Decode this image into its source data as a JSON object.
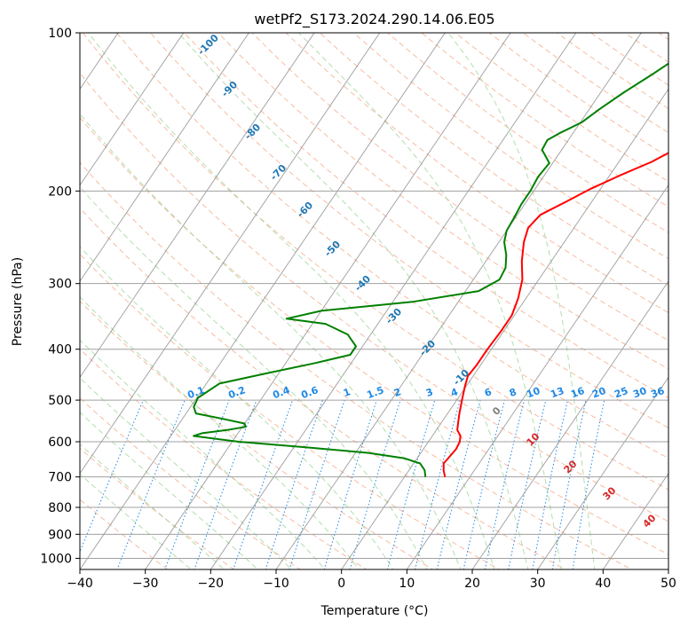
{
  "chart_data": {
    "type": "line",
    "title": "wetPf2_S173.2024.290.14.06.E05",
    "xlabel": "Temperature (°C)",
    "ylabel": "Pressure (hPa)",
    "xlim": [
      -40,
      50
    ],
    "ylim": [
      1050,
      100
    ],
    "y_scale": "log",
    "x_ticks": [
      -40,
      -30,
      -20,
      -10,
      0,
      10,
      20,
      30,
      40,
      50
    ],
    "x_tick_labels": [
      "−40",
      "−30",
      "−20",
      "−10",
      "0",
      "10",
      "20",
      "30",
      "40",
      "50"
    ],
    "y_ticks": [
      1000,
      900,
      800,
      700,
      600,
      500,
      400,
      300,
      200,
      100
    ],
    "y_tick_labels": [
      "1000",
      "900",
      "800",
      "700",
      "600",
      "500",
      "400",
      "300",
      "200",
      "100"
    ],
    "grid": true,
    "series": [
      {
        "color": "#ff0000",
        "points": [
          [
            6.2,
            700
          ],
          [
            5.3,
            680
          ],
          [
            4.6,
            660
          ],
          [
            4.8,
            640
          ],
          [
            5.0,
            620
          ],
          [
            4.8,
            600
          ],
          [
            4.3,
            585
          ],
          [
            3.2,
            570
          ],
          [
            2.5,
            550
          ],
          [
            1.8,
            530
          ],
          [
            0.8,
            500
          ],
          [
            -0.2,
            470
          ],
          [
            -0.8,
            450
          ],
          [
            -0.6,
            430
          ],
          [
            -0.6,
            400
          ],
          [
            -0.4,
            370
          ],
          [
            -0.4,
            345
          ],
          [
            -1.2,
            320
          ],
          [
            -2.5,
            295
          ],
          [
            -4.5,
            272
          ],
          [
            -6.2,
            250
          ],
          [
            -7.0,
            235
          ],
          [
            -6.5,
            222
          ],
          [
            -4.0,
            210
          ],
          [
            -1.5,
            198
          ],
          [
            1.5,
            187
          ],
          [
            5.0,
            176
          ],
          [
            8.2,
            163
          ],
          [
            10.8,
            148
          ],
          [
            12.8,
            132
          ],
          [
            15.5,
            120
          ],
          [
            19.0,
            112
          ],
          [
            21.0,
            106
          ],
          [
            22.5,
            100
          ]
        ]
      },
      {
        "color": "#008000",
        "points": [
          [
            3.2,
            700
          ],
          [
            2.4,
            680
          ],
          [
            1.0,
            660
          ],
          [
            -2.0,
            645
          ],
          [
            -8.0,
            630
          ],
          [
            -18.0,
            615
          ],
          [
            -29.0,
            600
          ],
          [
            -36.5,
            585
          ],
          [
            -35.5,
            578
          ],
          [
            -32.0,
            570
          ],
          [
            -29.5,
            562
          ],
          [
            -30.0,
            554
          ],
          [
            -33.0,
            545
          ],
          [
            -38.5,
            530
          ],
          [
            -39.5,
            515
          ],
          [
            -39.8,
            495
          ],
          [
            -38.0,
            465
          ],
          [
            -32.0,
            445
          ],
          [
            -25.5,
            425
          ],
          [
            -21.0,
            410
          ],
          [
            -21.0,
            395
          ],
          [
            -23.5,
            375
          ],
          [
            -28.0,
            358
          ],
          [
            -34.5,
            350
          ],
          [
            -30.0,
            338
          ],
          [
            -17.0,
            325
          ],
          [
            -8.0,
            310
          ],
          [
            -6.0,
            295
          ],
          [
            -6.3,
            280
          ],
          [
            -7.5,
            265
          ],
          [
            -9.2,
            250
          ],
          [
            -10.0,
            238
          ],
          [
            -10.2,
            225
          ],
          [
            -10.5,
            212
          ],
          [
            -10.5,
            200
          ],
          [
            -10.8,
            188
          ],
          [
            -10.5,
            177
          ],
          [
            -13.0,
            167
          ],
          [
            -13.2,
            160
          ],
          [
            -12.0,
            155
          ],
          [
            -9.8,
            148
          ],
          [
            -8.5,
            140
          ],
          [
            -6.5,
            130
          ],
          [
            -4.0,
            120
          ],
          [
            -1.5,
            110
          ],
          [
            0.2,
            100
          ]
        ]
      }
    ],
    "isobar_levels": [
      1000,
      900,
      800,
      700,
      600,
      500,
      400,
      300,
      200,
      100
    ],
    "dry_adiabat_label_values": [
      "-100",
      "-90",
      "-80",
      "-70",
      "-60",
      "-50",
      "-40",
      "-30",
      "-20",
      "-10"
    ],
    "mixing_ratio_labels": [
      "0.1",
      "0.2",
      "0.4",
      "0.6",
      "1",
      "1.5",
      "2",
      "3",
      "4",
      "6",
      "8",
      "10",
      "13",
      "16",
      "20",
      "25",
      "30",
      "36"
    ],
    "moist_adiabat_labels": [
      "0",
      "10",
      "20",
      "30",
      "40"
    ],
    "colors": {
      "temperature": "#ff0000",
      "dewpoint": "#008000",
      "isotherm": "#808080",
      "isobar": "#a0a0a0",
      "dry_adiabat": "#f4a582",
      "moist_adiabat": "#a6d8a0",
      "mixing_ratio": "#1e88e5",
      "dry_adiabat_label": "#1f77b4",
      "moist_adiabat_label": "#d62728",
      "zero_label": "#808080"
    }
  }
}
